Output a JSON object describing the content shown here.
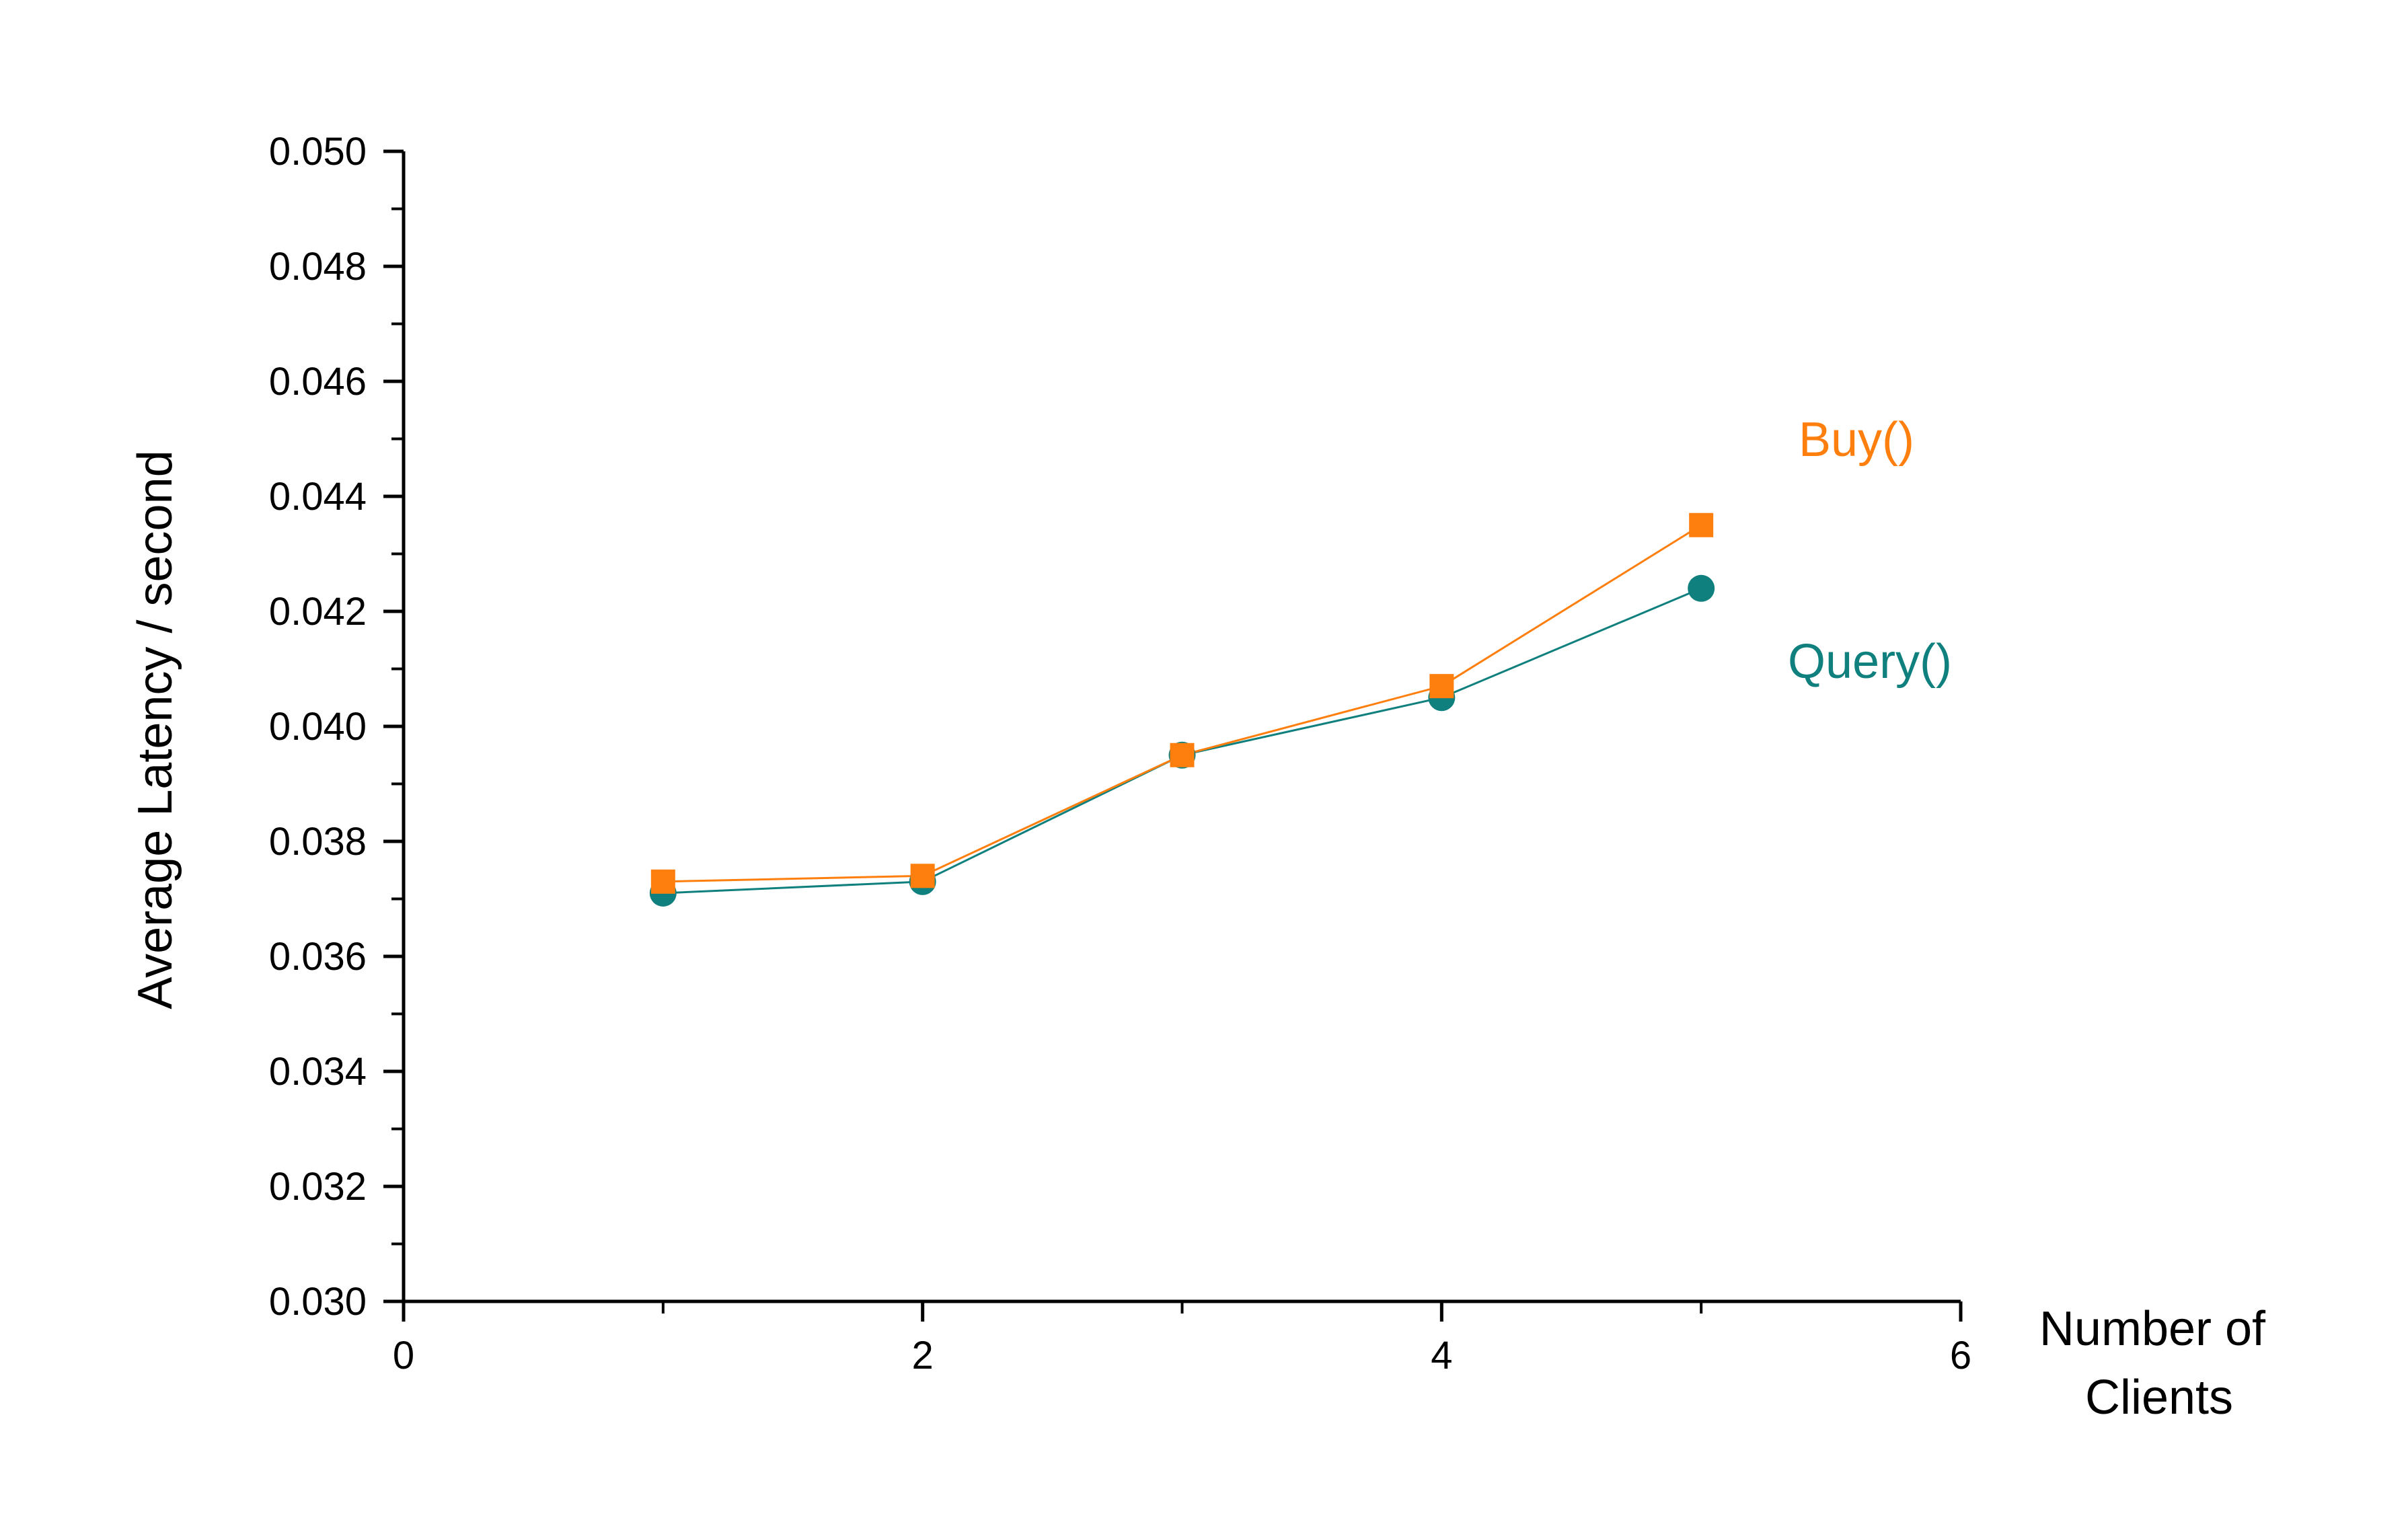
{
  "chart_data": {
    "type": "line",
    "xlabel_lines": [
      "Number of",
      "Clients"
    ],
    "ylabel": "Average Latency / second",
    "xlim": [
      0,
      6
    ],
    "ylim": [
      0.03,
      0.05
    ],
    "x_ticks": [
      "0",
      "2",
      "4",
      "6"
    ],
    "x_tick_values": [
      0,
      2,
      4,
      6
    ],
    "x_minor_step": 1,
    "y_ticks": [
      "0.030",
      "0.032",
      "0.034",
      "0.036",
      "0.038",
      "0.040",
      "0.042",
      "0.044",
      "0.046",
      "0.048",
      "0.050"
    ],
    "y_tick_values": [
      0.03,
      0.032,
      0.034,
      0.036,
      0.038,
      0.04,
      0.042,
      0.044,
      0.046,
      0.048,
      0.05
    ],
    "y_minor_step": 0.001,
    "grid": false,
    "legend": "direct labels at the right end of each series",
    "x": [
      1,
      2,
      3,
      4,
      5
    ],
    "series": [
      {
        "name": "Buy()",
        "marker": "square",
        "color": "#ff7f0e",
        "values": [
          0.0373,
          0.0374,
          0.0395,
          0.0407,
          0.0435
        ]
      },
      {
        "name": "Query()",
        "marker": "circle",
        "color": "#0f807d",
        "values": [
          0.0371,
          0.0373,
          0.0395,
          0.0405,
          0.0424
        ]
      }
    ]
  }
}
